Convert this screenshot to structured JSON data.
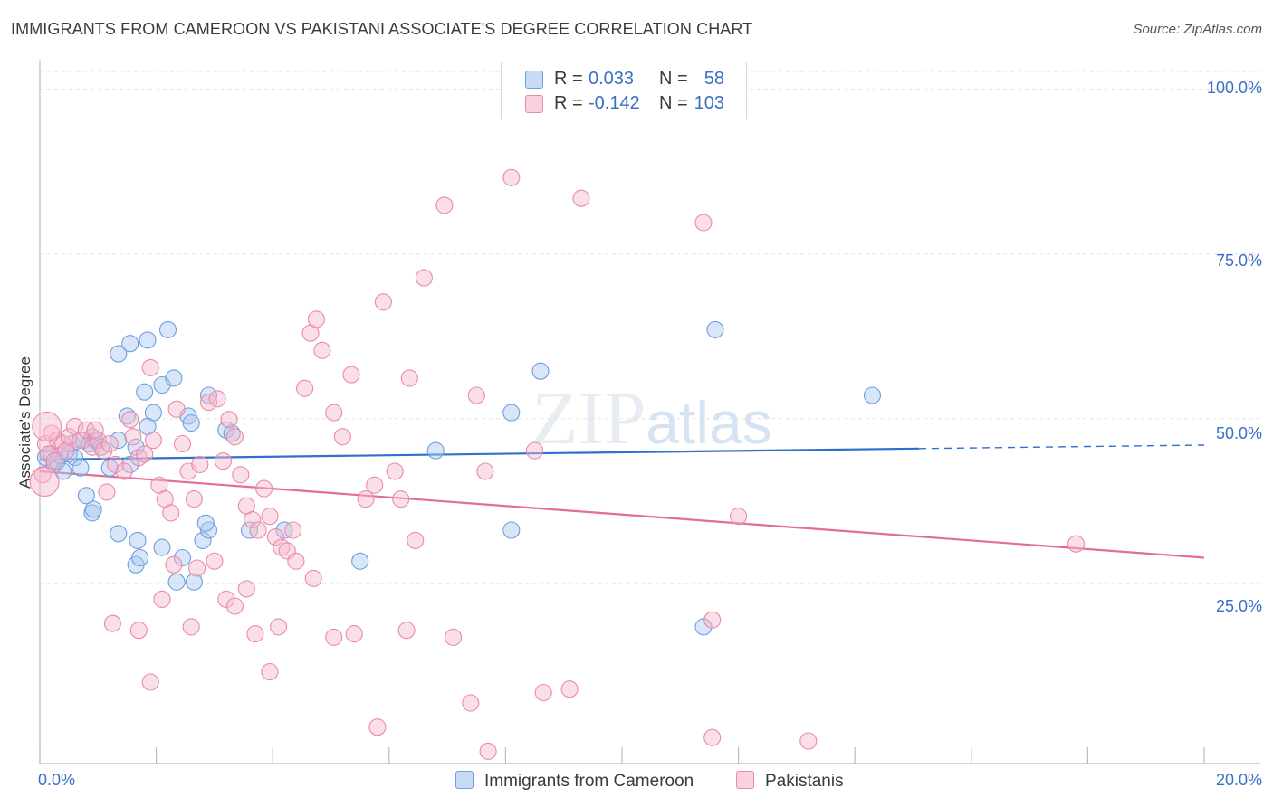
{
  "title": "IMMIGRANTS FROM CAMEROON VS PAKISTANI ASSOCIATE'S DEGREE CORRELATION CHART",
  "source": "Source: ZipAtlas.com",
  "watermark": "ZIPatlas",
  "legend": {
    "rows": [
      {
        "r_label": "R =",
        "r_value": "0.033",
        "n_label": "N =",
        "n_value": "58",
        "color": "#a9c8f0",
        "stroke": "#6e9ee0"
      },
      {
        "r_label": "R =",
        "r_value": "-0.142",
        "n_label": "N =",
        "n_value": "103",
        "color": "#f7b9cc",
        "stroke": "#eb8aa8"
      }
    ]
  },
  "chart_data": {
    "type": "scatter",
    "title": "IMMIGRANTS FROM CAMEROON VS PAKISTANI ASSOCIATE'S DEGREE CORRELATION CHART",
    "xlabel": "",
    "ylabel": "Associate's Degree",
    "xlim": [
      0,
      20
    ],
    "ylim": [
      0,
      105
    ],
    "x_tick_labels": [
      "0.0%",
      "20.0%"
    ],
    "y_tick_labels": [
      "100.0%",
      "75.0%",
      "50.0%",
      "25.0%"
    ],
    "y_ticks": [
      100,
      75,
      50,
      25
    ],
    "grid": true,
    "legend_position": "top-center",
    "series": [
      {
        "name": "Immigrants from Cameroon",
        "color": "#a9c8f0",
        "stroke": "#6e9ee0",
        "line_color": "#2f6fcf",
        "trend": {
          "x0": 0,
          "y0": 46.2,
          "x1": 15.1,
          "y1": 47.8,
          "dashed_to_x": 20,
          "dashed_to_y": 48.3
        },
        "points": [
          [
            0.1,
            46.5
          ],
          [
            0.2,
            47.0
          ],
          [
            0.25,
            45.5
          ],
          [
            0.3,
            46.0
          ],
          [
            0.35,
            46.8
          ],
          [
            0.4,
            44.5
          ],
          [
            0.5,
            47.0
          ],
          [
            0.55,
            48.5
          ],
          [
            0.6,
            46.5
          ],
          [
            0.7,
            45.0
          ],
          [
            0.75,
            49.0
          ],
          [
            0.85,
            48.5
          ],
          [
            0.9,
            49.5
          ],
          [
            0.95,
            49.0
          ],
          [
            1.05,
            48.0
          ],
          [
            0.9,
            38.5
          ],
          [
            0.8,
            41.0
          ],
          [
            0.92,
            39.0
          ],
          [
            1.35,
            61.5
          ],
          [
            1.55,
            63.0
          ],
          [
            1.85,
            63.5
          ],
          [
            2.2,
            65.0
          ],
          [
            2.1,
            57.0
          ],
          [
            2.3,
            58.0
          ],
          [
            1.8,
            56.0
          ],
          [
            1.95,
            53.0
          ],
          [
            1.85,
            51.0
          ],
          [
            2.55,
            52.5
          ],
          [
            2.6,
            51.5
          ],
          [
            2.9,
            55.5
          ],
          [
            1.5,
            52.5
          ],
          [
            1.65,
            48.0
          ],
          [
            1.55,
            45.5
          ],
          [
            1.2,
            45.0
          ],
          [
            1.35,
            49.0
          ],
          [
            3.2,
            50.5
          ],
          [
            3.3,
            50.0
          ],
          [
            2.1,
            33.5
          ],
          [
            1.35,
            35.5
          ],
          [
            1.68,
            34.5
          ],
          [
            1.65,
            31.0
          ],
          [
            1.72,
            32.0
          ],
          [
            2.45,
            32.0
          ],
          [
            2.8,
            34.5
          ],
          [
            2.9,
            36.0
          ],
          [
            2.85,
            37.0
          ],
          [
            3.6,
            36.0
          ],
          [
            4.2,
            36.0
          ],
          [
            2.35,
            28.5
          ],
          [
            2.65,
            28.5
          ],
          [
            5.5,
            31.5
          ],
          [
            6.8,
            47.5
          ],
          [
            8.1,
            53.0
          ],
          [
            8.1,
            36.0
          ],
          [
            8.6,
            59.0
          ],
          [
            11.6,
            65.0
          ],
          [
            14.3,
            55.5
          ],
          [
            11.4,
            22.0
          ]
        ]
      },
      {
        "name": "Pakistanis",
        "color": "#f7b9cc",
        "stroke": "#eb8aa8",
        "line_color": "#e36d98",
        "trend": {
          "x0": 0,
          "y0": 44.5,
          "x1": 20,
          "y1": 32.0
        },
        "points": [
          [
            0.05,
            44.0
          ],
          [
            0.1,
            48.5
          ],
          [
            0.15,
            47.0
          ],
          [
            0.2,
            50.0
          ],
          [
            0.25,
            46.0
          ],
          [
            0.3,
            49.0
          ],
          [
            0.4,
            48.5
          ],
          [
            0.45,
            47.5
          ],
          [
            0.5,
            49.5
          ],
          [
            0.6,
            51.0
          ],
          [
            0.7,
            49.0
          ],
          [
            0.8,
            50.5
          ],
          [
            0.9,
            48.0
          ],
          [
            1.0,
            49.0
          ],
          [
            1.1,
            47.5
          ],
          [
            1.2,
            48.5
          ],
          [
            0.95,
            50.5
          ],
          [
            1.15,
            41.5
          ],
          [
            1.3,
            45.5
          ],
          [
            1.45,
            44.5
          ],
          [
            1.55,
            52.0
          ],
          [
            1.6,
            49.5
          ],
          [
            1.7,
            46.5
          ],
          [
            1.8,
            47.0
          ],
          [
            1.9,
            59.5
          ],
          [
            1.95,
            49.0
          ],
          [
            2.05,
            42.5
          ],
          [
            2.15,
            40.5
          ],
          [
            2.25,
            38.5
          ],
          [
            2.35,
            53.5
          ],
          [
            2.45,
            48.5
          ],
          [
            2.55,
            44.5
          ],
          [
            2.65,
            40.5
          ],
          [
            2.75,
            45.5
          ],
          [
            2.9,
            54.5
          ],
          [
            3.05,
            55.0
          ],
          [
            3.15,
            46.0
          ],
          [
            3.25,
            52.0
          ],
          [
            3.35,
            49.5
          ],
          [
            3.45,
            44.0
          ],
          [
            3.55,
            39.5
          ],
          [
            3.65,
            37.5
          ],
          [
            3.75,
            36.0
          ],
          [
            3.85,
            42.0
          ],
          [
            3.95,
            38.0
          ],
          [
            4.05,
            35.0
          ],
          [
            4.15,
            33.5
          ],
          [
            4.25,
            33.0
          ],
          [
            4.35,
            36.0
          ],
          [
            4.55,
            56.5
          ],
          [
            4.65,
            64.5
          ],
          [
            4.75,
            66.5
          ],
          [
            4.85,
            62.0
          ],
          [
            5.05,
            53.0
          ],
          [
            5.2,
            49.5
          ],
          [
            5.35,
            58.5
          ],
          [
            5.6,
            40.5
          ],
          [
            5.75,
            42.5
          ],
          [
            5.9,
            69.0
          ],
          [
            6.1,
            44.5
          ],
          [
            6.2,
            40.5
          ],
          [
            6.35,
            58.0
          ],
          [
            6.6,
            72.5
          ],
          [
            6.95,
            83.0
          ],
          [
            7.5,
            55.5
          ],
          [
            7.65,
            44.5
          ],
          [
            8.1,
            87.0
          ],
          [
            8.5,
            47.5
          ],
          [
            9.3,
            84.0
          ],
          [
            11.4,
            80.5
          ],
          [
            12.0,
            38.0
          ],
          [
            1.25,
            22.5
          ],
          [
            1.7,
            21.5
          ],
          [
            1.9,
            14.0
          ],
          [
            2.1,
            26.0
          ],
          [
            2.3,
            31.0
          ],
          [
            2.6,
            22.0
          ],
          [
            2.7,
            30.5
          ],
          [
            3.0,
            31.5
          ],
          [
            3.2,
            26.0
          ],
          [
            3.35,
            25.0
          ],
          [
            3.55,
            27.5
          ],
          [
            3.7,
            21.0
          ],
          [
            3.95,
            15.5
          ],
          [
            4.1,
            22.0
          ],
          [
            4.4,
            31.5
          ],
          [
            4.7,
            29.0
          ],
          [
            5.05,
            20.5
          ],
          [
            5.4,
            21.0
          ],
          [
            5.8,
            7.5
          ],
          [
            6.3,
            21.5
          ],
          [
            6.45,
            34.5
          ],
          [
            7.1,
            20.5
          ],
          [
            7.4,
            11.0
          ],
          [
            7.7,
            4.0
          ],
          [
            8.65,
            12.5
          ],
          [
            9.1,
            13.0
          ],
          [
            11.55,
            23.0
          ],
          [
            11.55,
            6.0
          ],
          [
            13.2,
            5.5
          ],
          [
            17.8,
            34.0
          ],
          [
            0.08,
            43.0
          ],
          [
            0.12,
            51.0
          ]
        ]
      }
    ]
  }
}
